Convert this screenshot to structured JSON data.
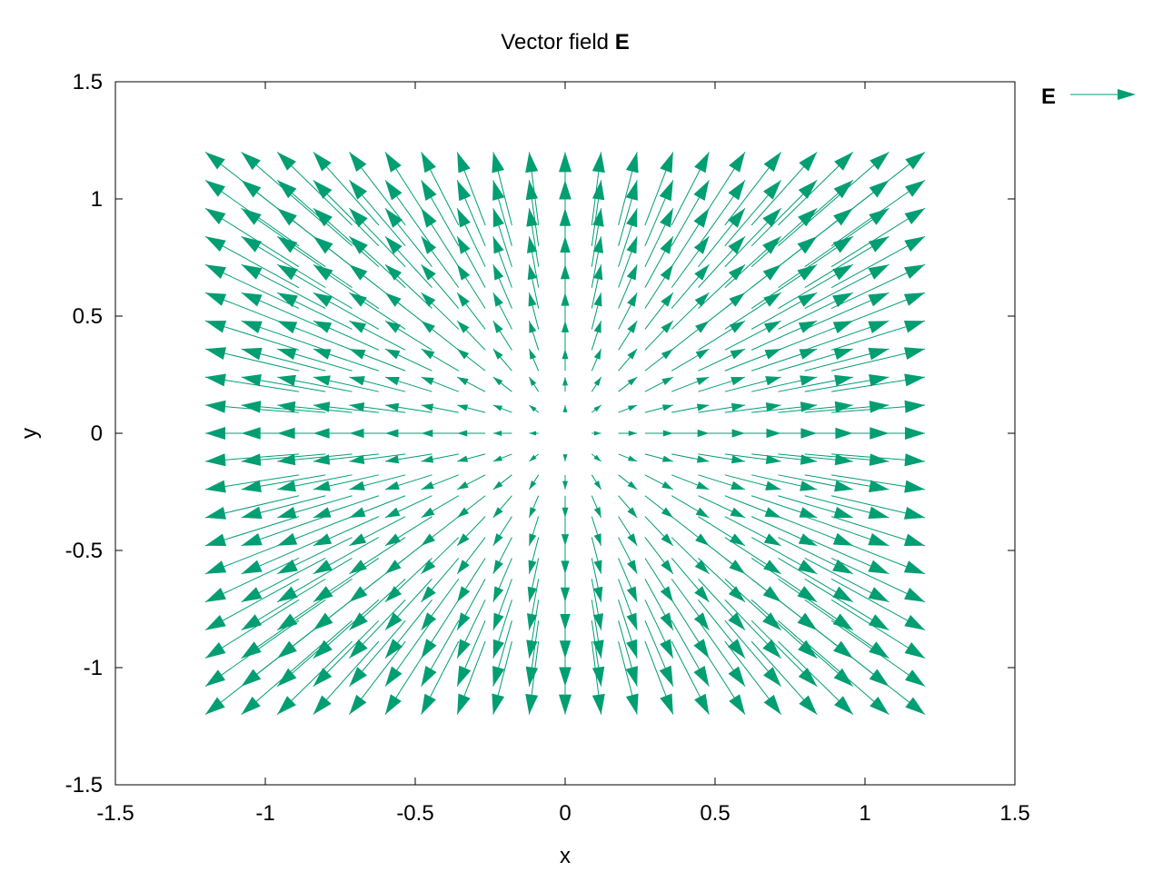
{
  "chart_data": {
    "type": "vector-field",
    "title": "Vector field",
    "title_bold": "E",
    "xlabel": "x",
    "ylabel": "y",
    "xlim": [
      -1.5,
      1.5
    ],
    "ylim": [
      -1.5,
      1.5
    ],
    "xticks": [
      "-1.5",
      "-1",
      "-0.5",
      "0",
      "0.5",
      "1",
      "1.5"
    ],
    "yticks": [
      "-1.5",
      "-1",
      "-0.5",
      "0",
      "0.5",
      "1",
      "1.5"
    ],
    "grid": false,
    "legend": {
      "label": "E",
      "placement": "top-right, outside plot"
    },
    "series": [
      {
        "name": "E",
        "color": "#009e73",
        "x_range": [
          -1.2,
          1.2
        ],
        "y_range": [
          -1.2,
          1.2
        ],
        "grid_count": [
          21,
          21
        ],
        "vector": "E(x, y) = (x, y) radial field pointing away from origin"
      }
    ]
  }
}
